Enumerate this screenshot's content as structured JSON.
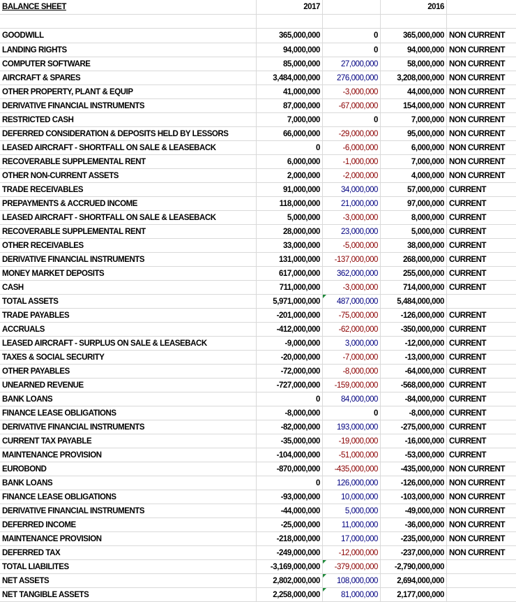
{
  "header": {
    "title": "BALANCE SHEET",
    "year_current": "2017",
    "year_prior": "2016"
  },
  "rows": [
    {
      "label": "GOODWILL",
      "y2017": "365,000,000",
      "diff": "0",
      "diff_sign": "zero",
      "y2016": "365,000,000",
      "cls": "NON CURRENT"
    },
    {
      "label": "LANDING RIGHTS",
      "y2017": "94,000,000",
      "diff": "0",
      "diff_sign": "zero",
      "y2016": "94,000,000",
      "cls": "NON CURRENT"
    },
    {
      "label": "COMPUTER SOFTWARE",
      "y2017": "85,000,000",
      "diff": "27,000,000",
      "diff_sign": "pos",
      "y2016": "58,000,000",
      "cls": "NON CURRENT"
    },
    {
      "label": "AIRCRAFT & SPARES",
      "y2017": "3,484,000,000",
      "diff": "276,000,000",
      "diff_sign": "pos",
      "y2016": "3,208,000,000",
      "cls": "NON CURRENT"
    },
    {
      "label": "OTHER PROPERTY, PLANT & EQUIP",
      "y2017": "41,000,000",
      "diff": "-3,000,000",
      "diff_sign": "neg",
      "y2016": "44,000,000",
      "cls": "NON CURRENT"
    },
    {
      "label": "DERIVATIVE FINANCIAL INSTRUMENTS",
      "y2017": "87,000,000",
      "diff": "-67,000,000",
      "diff_sign": "neg",
      "y2016": "154,000,000",
      "cls": "NON CURRENT"
    },
    {
      "label": "RESTRICTED CASH",
      "y2017": "7,000,000",
      "diff": "0",
      "diff_sign": "zero",
      "y2016": "7,000,000",
      "cls": "NON CURRENT"
    },
    {
      "label": "DEFERRED CONSIDERATION & DEPOSITS HELD BY LESSORS",
      "y2017": "66,000,000",
      "diff": "-29,000,000",
      "diff_sign": "neg",
      "y2016": "95,000,000",
      "cls": "NON CURRENT"
    },
    {
      "label": "LEASED AIRCRAFT - SHORTFALL ON SALE & LEASEBACK",
      "y2017": "0",
      "diff": "-6,000,000",
      "diff_sign": "neg",
      "y2016": "6,000,000",
      "cls": "NON CURRENT"
    },
    {
      "label": "RECOVERABLE SUPPLEMENTAL RENT",
      "y2017": "6,000,000",
      "diff": "-1,000,000",
      "diff_sign": "neg",
      "y2016": "7,000,000",
      "cls": "NON CURRENT"
    },
    {
      "label": "OTHER NON-CURRENT ASSETS",
      "y2017": "2,000,000",
      "diff": "-2,000,000",
      "diff_sign": "neg",
      "y2016": "4,000,000",
      "cls": "NON CURRENT"
    },
    {
      "label": "TRADE RECEIVABLES",
      "y2017": "91,000,000",
      "diff": "34,000,000",
      "diff_sign": "pos",
      "y2016": "57,000,000",
      "cls": "CURRENT"
    },
    {
      "label": "PREPAYMENTS & ACCRUED INCOME",
      "y2017": "118,000,000",
      "diff": "21,000,000",
      "diff_sign": "pos",
      "y2016": "97,000,000",
      "cls": "CURRENT"
    },
    {
      "label": "LEASED AIRCRAFT - SHORTFALL ON SALE & LEASEBACK",
      "y2017": "5,000,000",
      "diff": "-3,000,000",
      "diff_sign": "neg",
      "y2016": "8,000,000",
      "cls": "CURRENT"
    },
    {
      "label": "RECOVERABLE SUPPLEMENTAL RENT",
      "y2017": "28,000,000",
      "diff": "23,000,000",
      "diff_sign": "pos",
      "y2016": "5,000,000",
      "cls": "CURRENT"
    },
    {
      "label": "OTHER RECEIVABLES",
      "y2017": "33,000,000",
      "diff": "-5,000,000",
      "diff_sign": "neg",
      "y2016": "38,000,000",
      "cls": "CURRENT"
    },
    {
      "label": "DERIVATIVE FINANCIAL INSTRUMENTS",
      "y2017": "131,000,000",
      "diff": "-137,000,000",
      "diff_sign": "neg",
      "y2016": "268,000,000",
      "cls": "CURRENT"
    },
    {
      "label": "MONEY MARKET DEPOSITS",
      "y2017": "617,000,000",
      "diff": "362,000,000",
      "diff_sign": "pos",
      "y2016": "255,000,000",
      "cls": "CURRENT"
    },
    {
      "label": "CASH",
      "y2017": "711,000,000",
      "diff": "-3,000,000",
      "diff_sign": "neg",
      "y2016": "714,000,000",
      "cls": "CURRENT"
    },
    {
      "label": "TOTAL ASSETS",
      "y2017": "5,971,000,000",
      "diff": "487,000,000",
      "diff_sign": "pos",
      "y2016": "5,484,000,000",
      "cls": "",
      "flag": true
    },
    {
      "label": "TRADE PAYABLES",
      "y2017": "-201,000,000",
      "diff": "-75,000,000",
      "diff_sign": "neg",
      "y2016": "-126,000,000",
      "cls": "CURRENT"
    },
    {
      "label": "ACCRUALS",
      "y2017": "-412,000,000",
      "diff": "-62,000,000",
      "diff_sign": "neg",
      "y2016": "-350,000,000",
      "cls": "CURRENT"
    },
    {
      "label": "LEASED AIRCRAFT - SURPLUS ON SALE & LEASEBACK",
      "y2017": "-9,000,000",
      "diff": "3,000,000",
      "diff_sign": "pos",
      "y2016": "-12,000,000",
      "cls": "CURRENT"
    },
    {
      "label": "TAXES & SOCIAL SECURITY",
      "y2017": "-20,000,000",
      "diff": "-7,000,000",
      "diff_sign": "neg",
      "y2016": "-13,000,000",
      "cls": "CURRENT"
    },
    {
      "label": "OTHER PAYABLES",
      "y2017": "-72,000,000",
      "diff": "-8,000,000",
      "diff_sign": "neg",
      "y2016": "-64,000,000",
      "cls": "CURRENT"
    },
    {
      "label": "UNEARNED REVENUE",
      "y2017": "-727,000,000",
      "diff": "-159,000,000",
      "diff_sign": "neg",
      "y2016": "-568,000,000",
      "cls": "CURRENT"
    },
    {
      "label": "BANK LOANS",
      "y2017": "0",
      "diff": "84,000,000",
      "diff_sign": "pos",
      "y2016": "-84,000,000",
      "cls": "CURRENT"
    },
    {
      "label": "FINANCE LEASE OBLIGATIONS",
      "y2017": "-8,000,000",
      "diff": "0",
      "diff_sign": "zero",
      "y2016": "-8,000,000",
      "cls": "CURRENT"
    },
    {
      "label": "DERIVATIVE FINANCIAL INSTRUMENTS",
      "y2017": "-82,000,000",
      "diff": "193,000,000",
      "diff_sign": "pos",
      "y2016": "-275,000,000",
      "cls": "CURRENT"
    },
    {
      "label": "CURRENT TAX PAYABLE",
      "y2017": "-35,000,000",
      "diff": "-19,000,000",
      "diff_sign": "neg",
      "y2016": "-16,000,000",
      "cls": "CURRENT"
    },
    {
      "label": "MAINTENANCE PROVISION",
      "y2017": "-104,000,000",
      "diff": "-51,000,000",
      "diff_sign": "neg",
      "y2016": "-53,000,000",
      "cls": "CURRENT"
    },
    {
      "label": "EUROBOND",
      "y2017": "-870,000,000",
      "diff": "-435,000,000",
      "diff_sign": "neg",
      "y2016": "-435,000,000",
      "cls": "NON CURRENT"
    },
    {
      "label": "BANK LOANS",
      "y2017": "0",
      "diff": "126,000,000",
      "diff_sign": "pos",
      "y2016": "-126,000,000",
      "cls": "NON CURRENT"
    },
    {
      "label": "FINANCE LEASE OBLIGATIONS",
      "y2017": "-93,000,000",
      "diff": "10,000,000",
      "diff_sign": "pos",
      "y2016": "-103,000,000",
      "cls": "NON CURRENT"
    },
    {
      "label": "DERIVATIVE FINANCIAL INSTRUMENTS",
      "y2017": "-44,000,000",
      "diff": "5,000,000",
      "diff_sign": "pos",
      "y2016": "-49,000,000",
      "cls": "NON CURRENT"
    },
    {
      "label": "DEFERRED INCOME",
      "y2017": "-25,000,000",
      "diff": "11,000,000",
      "diff_sign": "pos",
      "y2016": "-36,000,000",
      "cls": "NON CURRENT"
    },
    {
      "label": "MAINTENANCE PROVISION",
      "y2017": "-218,000,000",
      "diff": "17,000,000",
      "diff_sign": "pos",
      "y2016": "-235,000,000",
      "cls": "NON CURRENT"
    },
    {
      "label": "DEFERRED TAX",
      "y2017": "-249,000,000",
      "diff": "-12,000,000",
      "diff_sign": "neg",
      "y2016": "-237,000,000",
      "cls": "NON CURRENT"
    },
    {
      "label": "TOTAL LIABILITES",
      "y2017": "-3,169,000,000",
      "diff": "-379,000,000",
      "diff_sign": "neg",
      "y2016": "-2,790,000,000",
      "cls": "",
      "flag": true
    },
    {
      "label": "NET ASSETS",
      "y2017": "2,802,000,000",
      "diff": "108,000,000",
      "diff_sign": "pos",
      "y2016": "2,694,000,000",
      "cls": "",
      "flag": true
    },
    {
      "label": "NET TANGIBLE ASSETS",
      "y2017": "2,258,000,000",
      "diff": "81,000,000",
      "diff_sign": "pos",
      "y2016": "2,177,000,000",
      "cls": "",
      "flag": true
    }
  ]
}
